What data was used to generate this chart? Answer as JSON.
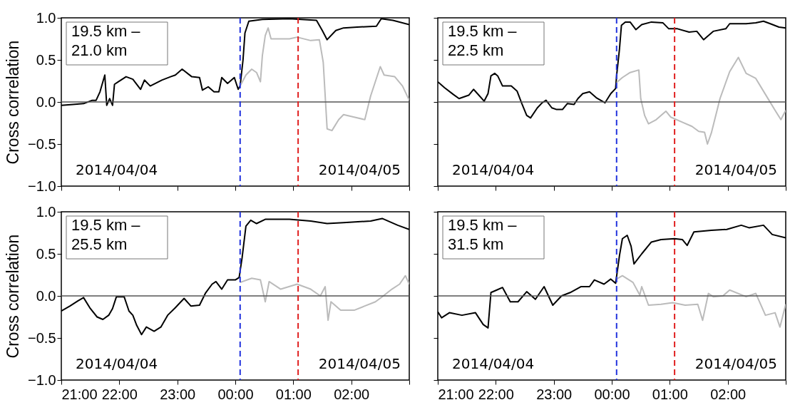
{
  "chart_data": [
    {
      "type": "line",
      "title": "19.5 km –\n21.0 km",
      "ylabel": "Cross correlation",
      "tick_labels": "y",
      "xlim": [
        "2014-04-04T21:00",
        "2014-04-05T03:00"
      ],
      "ylim": [
        -1,
        1
      ],
      "xticks": [
        "2014-04-04T21:00",
        "2014-04-04T22:00",
        "2014-04-04T23:00",
        "2014-04-05T00:00",
        "2014-04-05T01:00",
        "2014-04-05T02:00",
        "2014-04-05T03:00"
      ],
      "yticks": [
        {
          "value": -1,
          "label": "−1.0"
        },
        {
          "value": -0.5,
          "label": "−0.5"
        },
        {
          "value": 0,
          "label": "0.0"
        },
        {
          "value": 0.5,
          "label": "0.5"
        },
        {
          "value": 1,
          "label": "1.0"
        }
      ],
      "annotations": [
        "2014/04/04",
        "2014/04/05"
      ],
      "ref_lines": [
        {
          "axis": "y",
          "value": 0,
          "color": "#555555"
        },
        {
          "axis": "x",
          "value": "2014-04-05T00:05",
          "color": "#2233dd",
          "line_style": "dashed"
        },
        {
          "axis": "x",
          "value": "2014-04-05T01:05",
          "color": "#e02020",
          "line_style": "dashed"
        }
      ],
      "series": [
        {
          "color": "#000000",
          "x": [
            "2014-04-04T21:00",
            "2014-04-04T21:12",
            "2014-04-04T21:23",
            "2014-04-04T21:32",
            "2014-04-04T21:36",
            "2014-04-04T21:40",
            "2014-04-04T21:45",
            "2014-04-04T21:47",
            "2014-04-04T21:50",
            "2014-04-04T21:53",
            "2014-04-04T21:55",
            "2014-04-04T21:59",
            "2014-04-04T22:07",
            "2014-04-04T22:14",
            "2014-04-04T22:22",
            "2014-04-04T22:26",
            "2014-04-04T22:32",
            "2014-04-04T22:44",
            "2014-04-04T22:53",
            "2014-04-04T22:58",
            "2014-04-04T23:05",
            "2014-04-04T23:15",
            "2014-04-04T23:23",
            "2014-04-04T23:26",
            "2014-04-04T23:32",
            "2014-04-04T23:38",
            "2014-04-04T23:43",
            "2014-04-04T23:46",
            "2014-04-04T23:52",
            "2014-04-04T23:59",
            "2014-04-05T00:03",
            "2014-04-05T00:05",
            "2014-04-05T00:08",
            "2014-04-05T00:10",
            "2014-04-05T00:14",
            "2014-04-05T00:28",
            "2014-04-05T00:56",
            "2014-04-05T01:24",
            "2014-04-05T01:30",
            "2014-04-05T01:35",
            "2014-04-05T01:44",
            "2014-04-05T01:52",
            "2014-04-05T02:06",
            "2014-04-05T02:26",
            "2014-04-05T02:31",
            "2014-04-05T02:43",
            "2014-04-05T03:00"
          ],
          "values": [
            -0.04,
            -0.03,
            -0.02,
            0.02,
            0.02,
            0.12,
            0.32,
            -0.04,
            0.04,
            -0.04,
            0.21,
            0.24,
            0.3,
            0.27,
            0.15,
            0.26,
            0.19,
            0.26,
            0.3,
            0.32,
            0.39,
            0.3,
            0.29,
            0.14,
            0.18,
            0.12,
            0.12,
            0.29,
            0.22,
            0.29,
            0.15,
            0.19,
            0.5,
            0.82,
            0.96,
            0.98,
            0.99,
            0.97,
            0.85,
            0.74,
            0.85,
            0.88,
            0.89,
            0.9,
            0.99,
            0.97,
            0.92
          ]
        },
        {
          "color": "#bbbbbb",
          "x": [
            "2014-04-05T00:05",
            "2014-04-05T00:11",
            "2014-04-05T00:17",
            "2014-04-05T00:22",
            "2014-04-05T00:26",
            "2014-04-05T00:28",
            "2014-04-05T00:31",
            "2014-04-05T00:34",
            "2014-04-05T00:37",
            "2014-04-05T00:56",
            "2014-04-05T01:04",
            "2014-04-05T01:18",
            "2014-04-05T01:27",
            "2014-04-05T01:31",
            "2014-04-05T01:35",
            "2014-04-05T01:40",
            "2014-04-05T01:47",
            "2014-04-05T01:52",
            "2014-04-05T02:03",
            "2014-04-05T02:14",
            "2014-04-05T02:20",
            "2014-04-05T02:30",
            "2014-04-05T02:34",
            "2014-04-05T02:45",
            "2014-04-05T02:53",
            "2014-04-05T03:00"
          ],
          "values": [
            0.19,
            0.32,
            0.39,
            0.35,
            0.24,
            0.55,
            0.79,
            0.88,
            0.75,
            0.75,
            0.77,
            0.73,
            0.74,
            0.47,
            -0.32,
            -0.34,
            -0.21,
            -0.15,
            -0.18,
            -0.21,
            0.07,
            0.42,
            0.32,
            0.3,
            0.19,
            0.02
          ]
        }
      ]
    },
    {
      "type": "line",
      "title": "19.5 km –\n22.5 km",
      "tick_labels": false,
      "xlim": [
        "2014-04-04T21:00",
        "2014-04-05T03:00"
      ],
      "ylim": [
        -1,
        1
      ],
      "xticks": [
        "2014-04-04T21:00",
        "2014-04-04T22:00",
        "2014-04-04T23:00",
        "2014-04-05T00:00",
        "2014-04-05T01:00",
        "2014-04-05T02:00",
        "2014-04-05T03:00"
      ],
      "yticks": [
        -1,
        -0.5,
        0,
        0.5,
        1
      ],
      "annotations": [
        "2014/04/04",
        "2014/04/05"
      ],
      "ref_lines": [
        {
          "axis": "y",
          "value": 0,
          "color": "#555555"
        },
        {
          "axis": "x",
          "value": "2014-04-05T00:05",
          "color": "#2233dd",
          "line_style": "dashed"
        },
        {
          "axis": "x",
          "value": "2014-04-05T01:05",
          "color": "#e02020",
          "line_style": "dashed"
        }
      ],
      "series": [
        {
          "color": "#000000",
          "x": [
            "2014-04-04T21:00",
            "2014-04-04T21:07",
            "2014-04-04T21:16",
            "2014-04-04T21:22",
            "2014-04-04T21:32",
            "2014-04-04T21:37",
            "2014-04-04T21:41",
            "2014-04-04T21:48",
            "2014-04-04T21:52",
            "2014-04-04T21:55",
            "2014-04-04T21:59",
            "2014-04-04T22:02",
            "2014-04-04T22:07",
            "2014-04-04T22:11",
            "2014-04-04T22:16",
            "2014-04-04T22:22",
            "2014-04-04T22:27",
            "2014-04-04T22:32",
            "2014-04-04T22:36",
            "2014-04-04T22:43",
            "2014-04-04T22:48",
            "2014-04-04T22:52",
            "2014-04-04T22:58",
            "2014-04-04T23:03",
            "2014-04-04T23:09",
            "2014-04-04T23:14",
            "2014-04-04T23:21",
            "2014-04-04T23:25",
            "2014-04-04T23:30",
            "2014-04-04T23:37",
            "2014-04-04T23:44",
            "2014-04-04T23:53",
            "2014-04-04T23:59",
            "2014-04-05T00:04",
            "2014-04-05T00:05",
            "2014-04-05T00:08",
            "2014-04-05T00:10",
            "2014-04-05T00:14",
            "2014-04-05T00:19",
            "2014-04-05T00:25",
            "2014-04-05T00:31",
            "2014-04-05T00:41",
            "2014-04-05T00:53",
            "2014-04-05T00:59",
            "2014-04-05T01:08",
            "2014-04-05T01:20",
            "2014-04-05T01:28",
            "2014-04-05T01:35",
            "2014-04-05T01:45",
            "2014-04-05T01:58",
            "2014-04-05T02:02",
            "2014-04-05T02:19",
            "2014-04-05T02:29",
            "2014-04-05T02:37",
            "2014-04-05T02:44",
            "2014-04-05T02:53",
            "2014-04-05T03:00"
          ],
          "values": [
            0.24,
            0.17,
            0.09,
            0.04,
            0.08,
            0.15,
            0.1,
            0.01,
            0.1,
            0.31,
            0.34,
            0.31,
            0.19,
            0.19,
            0.19,
            0.13,
            -0.02,
            -0.16,
            -0.19,
            -0.07,
            -0.01,
            0.02,
            -0.07,
            -0.09,
            -0.09,
            -0.02,
            -0.03,
            0.04,
            0.1,
            0.12,
            0.05,
            -0.01,
            0.1,
            0.16,
            0.31,
            0.63,
            0.91,
            0.95,
            0.95,
            0.86,
            0.92,
            0.95,
            0.94,
            0.87,
            0.87,
            0.83,
            0.84,
            0.74,
            0.84,
            0.87,
            0.93,
            0.93,
            0.94,
            0.96,
            0.93,
            0.89,
            0.88
          ]
        },
        {
          "color": "#bbbbbb",
          "x": [
            "2014-04-05T00:05",
            "2014-04-05T00:11",
            "2014-04-05T00:19",
            "2014-04-05T00:28",
            "2014-04-05T00:30",
            "2014-04-05T00:34",
            "2014-04-05T00:38",
            "2014-04-05T00:46",
            "2014-04-05T00:56",
            "2014-04-05T01:01",
            "2014-04-05T01:13",
            "2014-04-05T01:23",
            "2014-04-05T01:30",
            "2014-04-05T01:36",
            "2014-04-05T01:39",
            "2014-04-05T01:43",
            "2014-04-05T01:52",
            "2014-04-05T02:02",
            "2014-04-05T02:11",
            "2014-04-05T02:19",
            "2014-04-05T02:29",
            "2014-04-05T02:39",
            "2014-04-05T02:49",
            "2014-04-05T02:55",
            "2014-04-05T03:00"
          ],
          "values": [
            0.23,
            0.29,
            0.35,
            0.38,
            0.04,
            -0.16,
            -0.26,
            -0.21,
            -0.11,
            -0.18,
            -0.24,
            -0.29,
            -0.35,
            -0.36,
            -0.5,
            -0.37,
            0.04,
            0.36,
            0.53,
            0.34,
            0.28,
            0.09,
            -0.1,
            -0.21,
            -0.1
          ]
        }
      ]
    },
    {
      "type": "line",
      "title": "19.5 km –\n25.5 km",
      "ylabel": "Cross correlation",
      "xlim": [
        "2014-04-04T21:00",
        "2014-04-05T03:00"
      ],
      "ylim": [
        -1,
        1
      ],
      "xticks": [
        {
          "value": "2014-04-04T21:00",
          "label": "21:00"
        },
        {
          "value": "2014-04-04T22:00",
          "label": "22:00"
        },
        {
          "value": "2014-04-04T23:00",
          "label": "23:00"
        },
        {
          "value": "2014-04-05T00:00",
          "label": "00:00"
        },
        {
          "value": "2014-04-05T01:00",
          "label": "01:00"
        },
        {
          "value": "2014-04-05T02:00",
          "label": "02:00"
        },
        {
          "value": "2014-04-05T03:00",
          "label": null
        }
      ],
      "yticks": [
        {
          "value": -1,
          "label": "−1.0"
        },
        {
          "value": -0.5,
          "label": "−0.5"
        },
        {
          "value": 0,
          "label": "0.0"
        },
        {
          "value": 0.5,
          "label": "0.5"
        },
        {
          "value": 1,
          "label": "1.0"
        }
      ],
      "annotations": [
        "2014/04/04",
        "2014/04/05"
      ],
      "ref_lines": [
        {
          "axis": "y",
          "value": 0,
          "color": "#555555"
        },
        {
          "axis": "x",
          "value": "2014-04-05T00:05",
          "color": "#2233dd",
          "line_style": "dashed"
        },
        {
          "axis": "x",
          "value": "2014-04-05T01:05",
          "color": "#e02020",
          "line_style": "dashed"
        }
      ],
      "series": [
        {
          "color": "#000000",
          "x": [
            "2014-04-04T21:00",
            "2014-04-04T21:09",
            "2014-04-04T21:17",
            "2014-04-04T21:23",
            "2014-04-04T21:30",
            "2014-04-04T21:37",
            "2014-04-04T21:43",
            "2014-04-04T21:49",
            "2014-04-04T21:53",
            "2014-04-04T21:57",
            "2014-04-04T22:05",
            "2014-04-04T22:10",
            "2014-04-04T22:14",
            "2014-04-04T22:18",
            "2014-04-04T22:23",
            "2014-04-04T22:28",
            "2014-04-04T22:36",
            "2014-04-04T22:43",
            "2014-04-04T22:50",
            "2014-04-04T22:58",
            "2014-04-04T23:07",
            "2014-04-04T23:14",
            "2014-04-04T23:23",
            "2014-04-04T23:29",
            "2014-04-04T23:36",
            "2014-04-04T23:40",
            "2014-04-04T23:46",
            "2014-04-04T23:52",
            "2014-04-05T00:00",
            "2014-04-05T00:04",
            "2014-04-05T00:07",
            "2014-04-05T00:11",
            "2014-04-05T00:16",
            "2014-04-05T00:22",
            "2014-04-05T00:31",
            "2014-04-05T00:56",
            "2014-04-05T01:18",
            "2014-04-05T01:35",
            "2014-04-05T01:52",
            "2014-04-05T02:20",
            "2014-04-05T02:32",
            "2014-04-05T02:48",
            "2014-04-05T03:00"
          ],
          "values": [
            -0.18,
            -0.12,
            -0.06,
            -0.02,
            -0.15,
            -0.25,
            -0.28,
            -0.23,
            -0.15,
            -0.01,
            -0.01,
            -0.18,
            -0.23,
            -0.35,
            -0.46,
            -0.37,
            -0.42,
            -0.37,
            -0.23,
            -0.14,
            -0.03,
            -0.12,
            -0.11,
            0.03,
            0.14,
            0.17,
            0.08,
            0.19,
            0.19,
            0.22,
            0.45,
            0.83,
            0.9,
            0.86,
            0.91,
            0.91,
            0.89,
            0.86,
            0.87,
            0.89,
            0.92,
            0.84,
            0.79
          ]
        },
        {
          "color": "#bbbbbb",
          "x": [
            "2014-04-05T00:05",
            "2014-04-05T00:17",
            "2014-04-05T00:26",
            "2014-04-05T00:31",
            "2014-04-05T00:35",
            "2014-04-05T00:47",
            "2014-04-05T01:04",
            "2014-04-05T01:18",
            "2014-04-05T01:28",
            "2014-04-05T01:33",
            "2014-04-05T01:36",
            "2014-04-05T01:39",
            "2014-04-05T01:49",
            "2014-04-05T02:03",
            "2014-04-05T02:14",
            "2014-04-05T02:25",
            "2014-04-05T02:32",
            "2014-04-05T02:42",
            "2014-04-05T02:50",
            "2014-04-05T02:56",
            "2014-04-05T03:00"
          ],
          "values": [
            0.16,
            0.21,
            0.19,
            -0.07,
            0.17,
            0.08,
            0.14,
            0.08,
            0.0,
            0.11,
            -0.29,
            -0.07,
            -0.17,
            -0.17,
            -0.12,
            -0.07,
            -0.01,
            0.08,
            0.14,
            0.24,
            0.14
          ]
        }
      ]
    },
    {
      "type": "line",
      "title": "19.5 km –\n31.5 km",
      "tick_labels": "x",
      "xlim": [
        "2014-04-04T21:00",
        "2014-04-05T03:00"
      ],
      "ylim": [
        -1,
        1
      ],
      "xticks": [
        {
          "value": "2014-04-04T21:00",
          "label": "21:00"
        },
        {
          "value": "2014-04-04T22:00",
          "label": "22:00"
        },
        {
          "value": "2014-04-04T23:00",
          "label": "23:00"
        },
        {
          "value": "2014-04-05T00:00",
          "label": "00:00"
        },
        {
          "value": "2014-04-05T01:00",
          "label": "01:00"
        },
        {
          "value": "2014-04-05T02:00",
          "label": "02:00"
        },
        {
          "value": "2014-04-05T03:00",
          "label": null
        }
      ],
      "yticks": [
        -1,
        -0.5,
        0,
        0.5,
        1
      ],
      "annotations": [
        "2014/04/04",
        "2014/04/05"
      ],
      "ref_lines": [
        {
          "axis": "y",
          "value": 0,
          "color": "#555555"
        },
        {
          "axis": "x",
          "value": "2014-04-05T00:05",
          "color": "#2233dd",
          "line_style": "dashed"
        },
        {
          "axis": "x",
          "value": "2014-04-05T01:05",
          "color": "#e02020",
          "line_style": "dashed"
        }
      ],
      "series": [
        {
          "color": "#000000",
          "x": [
            "2014-04-04T21:00",
            "2014-04-04T21:04",
            "2014-04-04T21:12",
            "2014-04-04T21:25",
            "2014-04-04T21:39",
            "2014-04-04T21:47",
            "2014-04-04T21:52",
            "2014-04-04T21:55",
            "2014-04-04T22:01",
            "2014-04-04T22:07",
            "2014-04-04T22:15",
            "2014-04-04T22:23",
            "2014-04-04T22:32",
            "2014-04-04T22:41",
            "2014-04-04T22:50",
            "2014-04-04T22:59",
            "2014-04-04T23:08",
            "2014-04-04T23:17",
            "2014-04-04T23:28",
            "2014-04-04T23:37",
            "2014-04-04T23:42",
            "2014-04-04T23:52",
            "2014-04-04T23:59",
            "2014-04-05T00:04",
            "2014-04-05T00:08",
            "2014-04-05T00:11",
            "2014-04-05T00:16",
            "2014-04-05T00:20",
            "2014-04-05T00:23",
            "2014-04-05T00:31",
            "2014-04-05T00:41",
            "2014-04-05T00:51",
            "2014-04-05T01:05",
            "2014-04-05T01:13",
            "2014-04-05T01:18",
            "2014-04-05T01:25",
            "2014-04-05T01:43",
            "2014-04-05T01:59",
            "2014-04-05T02:14",
            "2014-04-05T02:22",
            "2014-04-05T02:37",
            "2014-04-05T02:46",
            "2014-04-05T03:00"
          ],
          "values": [
            -0.19,
            -0.26,
            -0.2,
            -0.23,
            -0.2,
            -0.34,
            -0.38,
            0.04,
            0.07,
            0.1,
            -0.07,
            -0.07,
            0.05,
            -0.04,
            0.11,
            -0.11,
            0.0,
            0.04,
            0.11,
            0.11,
            0.19,
            0.14,
            0.2,
            0.15,
            0.48,
            0.68,
            0.72,
            0.59,
            0.38,
            0.5,
            0.64,
            0.67,
            0.68,
            0.67,
            0.6,
            0.76,
            0.78,
            0.79,
            0.84,
            0.81,
            0.84,
            0.73,
            0.69
          ]
        },
        {
          "color": "#bbbbbb",
          "x": [
            "2014-04-05T00:05",
            "2014-04-05T00:11",
            "2014-04-05T00:22",
            "2014-04-05T00:29",
            "2014-04-05T00:31",
            "2014-04-05T00:38",
            "2014-04-05T00:51",
            "2014-04-05T01:03",
            "2014-04-05T01:16",
            "2014-04-05T01:29",
            "2014-04-05T01:34",
            "2014-04-05T01:40",
            "2014-04-05T01:45",
            "2014-04-05T01:55",
            "2014-04-05T02:02",
            "2014-04-05T02:19",
            "2014-04-05T02:29",
            "2014-04-05T02:39",
            "2014-04-05T02:49",
            "2014-04-05T02:54",
            "2014-04-05T03:00"
          ],
          "values": [
            0.2,
            0.24,
            0.16,
            0.01,
            0.11,
            -0.11,
            -0.1,
            -0.08,
            -0.11,
            -0.1,
            -0.29,
            0.03,
            -0.01,
            0.0,
            0.07,
            -0.01,
            0.03,
            -0.23,
            -0.2,
            -0.37,
            -0.1
          ]
        }
      ]
    }
  ]
}
